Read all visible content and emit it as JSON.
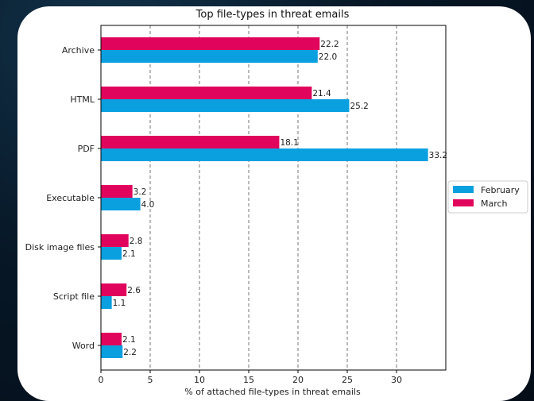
{
  "chart_data": {
    "type": "bar",
    "orientation": "horizontal",
    "title": "Top file-types in threat emails",
    "xlabel": "% of attached file-types in threat emails",
    "ylabel": "",
    "categories": [
      "Archive",
      "HTML",
      "PDF",
      "Executable",
      "Disk image files",
      "Script file",
      "Word"
    ],
    "series": [
      {
        "name": "February",
        "color": "#0aa0e0",
        "values": [
          22.0,
          25.2,
          33.2,
          4.0,
          2.1,
          1.1,
          2.2
        ],
        "labels": [
          "22.0",
          "25.2",
          "33.2",
          "4.0",
          "2.1",
          "1.1",
          "2.2"
        ]
      },
      {
        "name": "March",
        "color": "#e0045c",
        "values": [
          22.2,
          21.4,
          18.1,
          3.2,
          2.8,
          2.6,
          2.1
        ],
        "labels": [
          "22.2",
          "21.4",
          "18.1",
          "3.2",
          "2.8",
          "2.6",
          "2.1"
        ]
      }
    ],
    "xticks": [
      0,
      5,
      10,
      15,
      20,
      25,
      30
    ],
    "xtick_labels": [
      "0",
      "5",
      "10",
      "15",
      "20",
      "25",
      "30"
    ],
    "xlim": [
      0,
      35
    ],
    "grid": "vertical dashed",
    "legend": "right"
  }
}
